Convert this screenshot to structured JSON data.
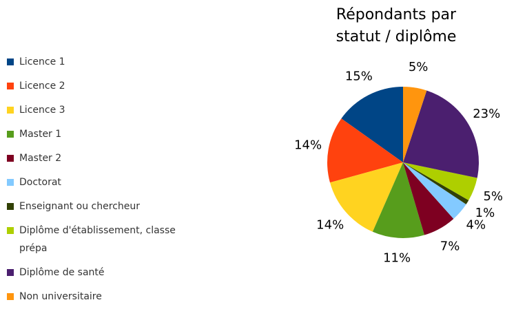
{
  "chart_data": {
    "type": "pie",
    "title": "Répondants par statut / diplôme",
    "categories": [
      "Licence 1",
      "Licence 2",
      "Licence 3",
      "Master 1",
      "Master 2",
      "Doctorat",
      "Enseignant ou chercheur",
      "Diplôme d'établissement, classe prépa",
      "Diplôme de santé",
      "Non universitaire"
    ],
    "values": [
      15,
      14,
      14,
      11,
      7,
      4,
      1,
      5,
      23,
      5
    ],
    "value_labels": [
      "15%",
      "14%",
      "14%",
      "11%",
      "7%",
      "4%",
      "1%",
      "5%",
      "23%",
      "5%"
    ],
    "colors": [
      "#004586",
      "#ff420e",
      "#ffd320",
      "#579d1c",
      "#7e0021",
      "#83caff",
      "#314004",
      "#aecf00",
      "#4b1f6f",
      "#ff950e"
    ],
    "legend": "left"
  }
}
